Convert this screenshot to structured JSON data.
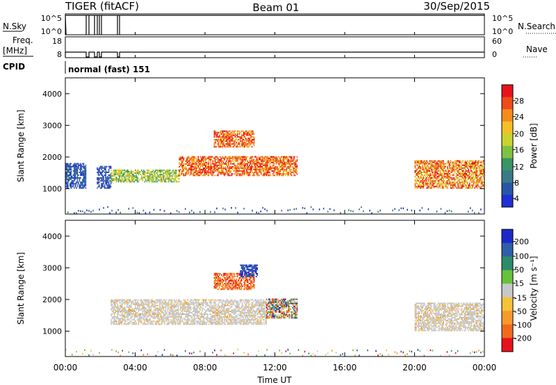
{
  "header": {
    "radar": "TIGER (fitACF)",
    "beam": "Beam 01",
    "date": "30/Sep/2015"
  },
  "panels": {
    "nsky_label": "N.Sky",
    "nsky_ticks": [
      "10^5",
      "10^0"
    ],
    "nsearch_label": "N.Search",
    "nsearch_ticks": [
      "10^5",
      "10^0"
    ],
    "freq_label": "Freq.",
    "freq_unit": "[MHz]",
    "freq_ticks": [
      "18",
      "8"
    ],
    "nave_label": "Nave",
    "nave_ticks": [
      "60",
      "0"
    ],
    "cpid_label": "CPID",
    "cpid_value": "normal (fast) 151"
  },
  "power_colorbar": {
    "label": "Power [dB]",
    "ticks": [
      "28",
      "24",
      "20",
      "16",
      "12",
      "8",
      "4"
    ],
    "colors": [
      "#e8121b",
      "#ef4a1a",
      "#f58a1e",
      "#f6be27",
      "#c7d430",
      "#7fc241",
      "#3b9463",
      "#3a7a86",
      "#2856a6",
      "#1e2fd3"
    ]
  },
  "velocity_colorbar": {
    "label": "Velocity [m s⁻¹]",
    "ticks": [
      "200",
      "100",
      "50",
      "15",
      "-15",
      "-50",
      "-100",
      "-200"
    ],
    "colors": [
      "#1b29c9",
      "#2f5fa8",
      "#2d8a6a",
      "#66c23b",
      "#c8c8c8",
      "#f5c23a",
      "#f59b2b",
      "#f06a1e",
      "#e8121b"
    ]
  },
  "chart_data": [
    {
      "type": "heatmap",
      "title": "Power",
      "ylabel": "Slant Range [km]",
      "xlabel": "",
      "ylim": [
        200,
        4500
      ],
      "xlim_hours": [
        0,
        24
      ],
      "yticks": [
        "1000",
        "2000",
        "3000",
        "4000"
      ],
      "colorbar_label": "Power [dB]",
      "echo_regions": [
        {
          "t_start": 0.0,
          "t_end": 1.2,
          "r_low": 1000,
          "r_high": 1800,
          "level": "4-12 dB"
        },
        {
          "t_start": 1.8,
          "t_end": 2.6,
          "r_low": 1000,
          "r_high": 1700,
          "level": "4-12 dB"
        },
        {
          "t_start": 2.6,
          "t_end": 6.5,
          "r_low": 1200,
          "r_high": 1600,
          "level": "12-20 dB"
        },
        {
          "t_start": 6.5,
          "t_end": 11.5,
          "r_low": 1400,
          "r_high": 2000,
          "level": "20-28 dB"
        },
        {
          "t_start": 8.5,
          "t_end": 10.8,
          "r_low": 2300,
          "r_high": 2800,
          "level": "20-28 dB"
        },
        {
          "t_start": 11.5,
          "t_end": 13.3,
          "r_low": 1400,
          "r_high": 2000,
          "level": "20-28 dB"
        },
        {
          "t_start": 20.0,
          "t_end": 24.0,
          "r_low": 1000,
          "r_high": 1900,
          "level": "16-28 dB"
        }
      ]
    },
    {
      "type": "heatmap",
      "title": "Velocity",
      "ylabel": "Slant Range [km]",
      "xlabel": "Time UT",
      "ylim": [
        200,
        4500
      ],
      "xlim_hours": [
        0,
        24
      ],
      "xticks": [
        "00:00",
        "04:00",
        "08:00",
        "12:00",
        "16:00",
        "20:00",
        "00:00"
      ],
      "yticks": [
        "1000",
        "2000",
        "3000",
        "4000"
      ],
      "colorbar_label": "Velocity [m s⁻¹]",
      "echo_regions": [
        {
          "t_start": 2.6,
          "t_end": 11.5,
          "r_low": 1200,
          "r_high": 2000,
          "level": "-15..15 (ground scatter)"
        },
        {
          "t_start": 8.5,
          "t_end": 10.8,
          "r_low": 2300,
          "r_high": 2800,
          "level": "-200..-100"
        },
        {
          "t_start": 10.0,
          "t_end": 11.0,
          "r_low": 2700,
          "r_high": 3100,
          "level": "100..200"
        },
        {
          "t_start": 11.5,
          "t_end": 13.3,
          "r_low": 1400,
          "r_high": 2000,
          "level": "-200..200"
        },
        {
          "t_start": 20.0,
          "t_end": 24.0,
          "r_low": 1000,
          "r_high": 1900,
          "level": "-15..15 (ground scatter)"
        }
      ]
    }
  ]
}
